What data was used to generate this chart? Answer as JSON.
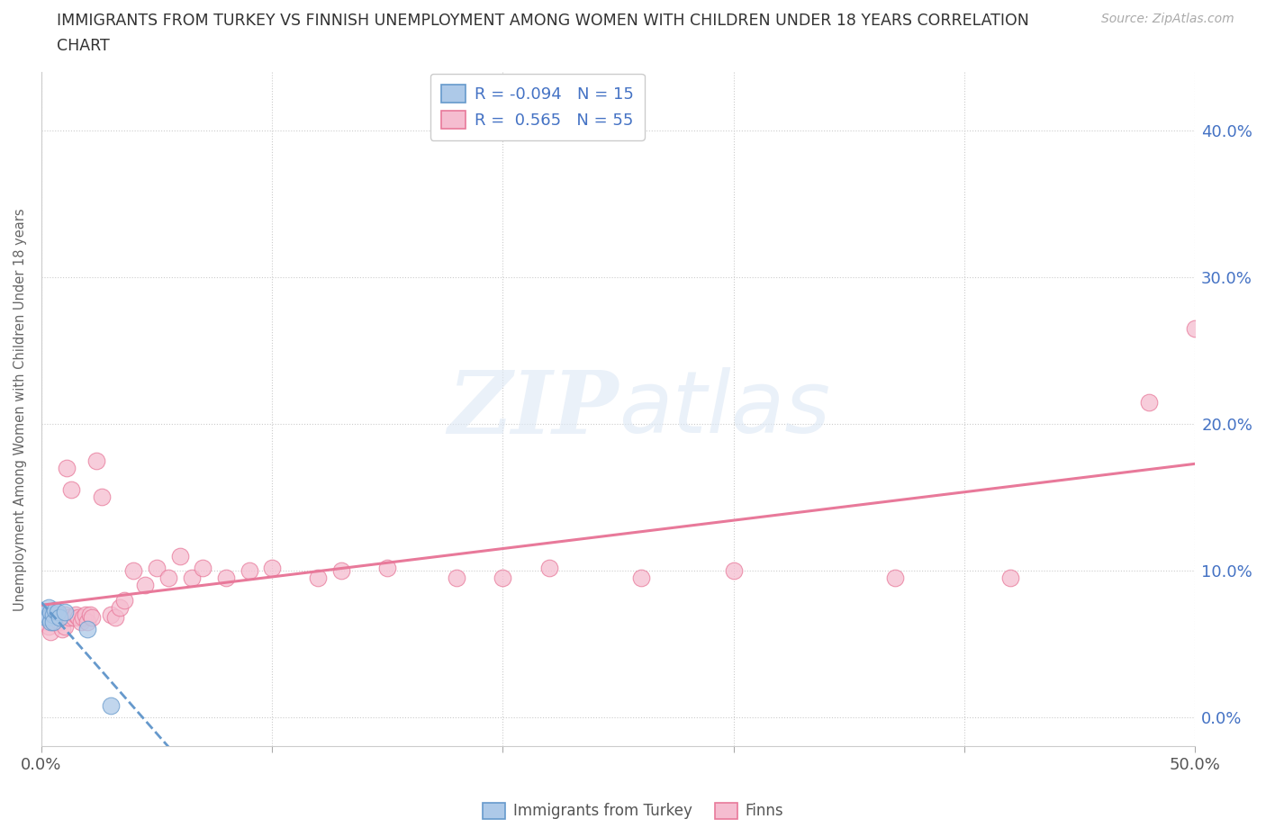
{
  "title_line1": "IMMIGRANTS FROM TURKEY VS FINNISH UNEMPLOYMENT AMONG WOMEN WITH CHILDREN UNDER 18 YEARS CORRELATION",
  "title_line2": "CHART",
  "source": "Source: ZipAtlas.com",
  "ylabel": "Unemployment Among Women with Children Under 18 years",
  "xlim": [
    0.0,
    0.5
  ],
  "ylim": [
    -0.02,
    0.44
  ],
  "xticks": [
    0.0,
    0.1,
    0.2,
    0.3,
    0.4,
    0.5
  ],
  "xticklabels": [
    "0.0%",
    "",
    "",
    "",
    "",
    "50.0%"
  ],
  "yticks_right": [
    0.0,
    0.1,
    0.2,
    0.3,
    0.4
  ],
  "yticklabels_right": [
    "0.0%",
    "10.0%",
    "20.0%",
    "30.0%",
    "40.0%"
  ],
  "background_color": "#ffffff",
  "grid_color": "#dddddd",
  "turkey_color": "#adc9e8",
  "turkey_edge": "#6699cc",
  "finns_color": "#f5bdd0",
  "finns_edge": "#e8799a",
  "turkey_R": -0.094,
  "turkey_N": 15,
  "finns_R": 0.565,
  "finns_N": 55,
  "turkey_line_color": "#6699cc",
  "finns_line_color": "#e8799a",
  "turkey_x": [
    0.001,
    0.002,
    0.002,
    0.003,
    0.003,
    0.004,
    0.004,
    0.005,
    0.005,
    0.006,
    0.007,
    0.008,
    0.01,
    0.02,
    0.03
  ],
  "turkey_y": [
    0.07,
    0.072,
    0.068,
    0.075,
    0.068,
    0.065,
    0.072,
    0.07,
    0.065,
    0.073,
    0.072,
    0.068,
    0.072,
    0.06,
    0.008
  ],
  "finns_x": [
    0.001,
    0.002,
    0.002,
    0.003,
    0.004,
    0.004,
    0.005,
    0.006,
    0.006,
    0.007,
    0.008,
    0.008,
    0.009,
    0.01,
    0.01,
    0.011,
    0.012,
    0.013,
    0.014,
    0.015,
    0.016,
    0.017,
    0.018,
    0.019,
    0.02,
    0.021,
    0.022,
    0.024,
    0.026,
    0.03,
    0.032,
    0.034,
    0.036,
    0.04,
    0.045,
    0.05,
    0.055,
    0.06,
    0.065,
    0.07,
    0.08,
    0.09,
    0.1,
    0.12,
    0.13,
    0.15,
    0.18,
    0.2,
    0.22,
    0.26,
    0.3,
    0.37,
    0.42,
    0.48,
    0.5
  ],
  "finns_y": [
    0.068,
    0.07,
    0.065,
    0.062,
    0.07,
    0.058,
    0.068,
    0.072,
    0.065,
    0.068,
    0.07,
    0.065,
    0.06,
    0.07,
    0.062,
    0.17,
    0.068,
    0.155,
    0.068,
    0.07,
    0.068,
    0.065,
    0.068,
    0.07,
    0.065,
    0.07,
    0.068,
    0.175,
    0.15,
    0.07,
    0.068,
    0.075,
    0.08,
    0.1,
    0.09,
    0.102,
    0.095,
    0.11,
    0.095,
    0.102,
    0.095,
    0.1,
    0.102,
    0.095,
    0.1,
    0.102,
    0.095,
    0.095,
    0.102,
    0.095,
    0.1,
    0.095,
    0.095,
    0.215,
    0.265
  ]
}
